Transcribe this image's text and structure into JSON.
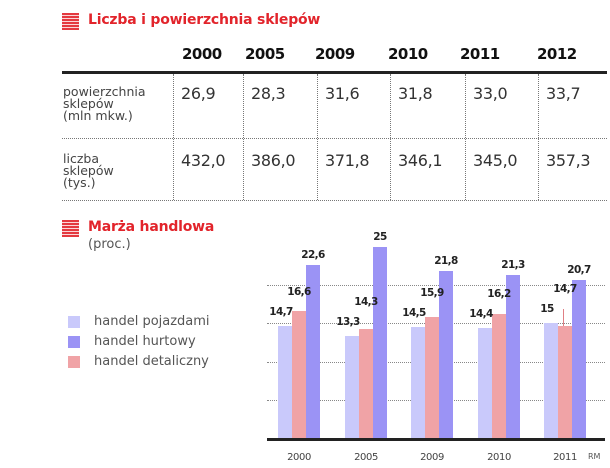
{
  "table_section": {
    "title": "Liczba i powierzchnia sklepów",
    "years": [
      "2000",
      "2005",
      "2009",
      "2010",
      "2011",
      "2012"
    ],
    "rows": [
      {
        "label_lines": [
          "powierzchnia",
          "sklepów",
          "(mln mkw.)"
        ],
        "values": [
          "26,9",
          "28,3",
          "31,6",
          "31,8",
          "33,0",
          "33,7"
        ]
      },
      {
        "label_lines": [
          "liczba",
          "sklepów",
          "(tys.)"
        ],
        "values": [
          "432,0",
          "386,0",
          "371,8",
          "346,1",
          "345,0",
          "357,3"
        ]
      }
    ]
  },
  "chart_section": {
    "title": "Marża handlowa",
    "subtitle": "(proc.)",
    "legend": [
      {
        "label": "handel pojazdami",
        "color": "#c9c9fb"
      },
      {
        "label": "handel hurtowy",
        "color": "#9b93f5"
      },
      {
        "label": "handel detaliczny",
        "color": "#f0a3a6"
      }
    ],
    "credit": "RM"
  },
  "chart_data": [
    {
      "type": "table",
      "title": "Liczba i powierzchnia sklepów",
      "columns": [
        "2000",
        "2005",
        "2009",
        "2010",
        "2011",
        "2012"
      ],
      "rows": [
        {
          "name": "powierzchnia sklepów (mln mkw.)",
          "values": [
            26.9,
            28.3,
            31.6,
            31.8,
            33.0,
            33.7
          ]
        },
        {
          "name": "liczba sklepów (tys.)",
          "values": [
            432.0,
            386.0,
            371.8,
            346.1,
            345.0,
            357.3
          ]
        }
      ]
    },
    {
      "type": "bar",
      "title": "Marża handlowa",
      "subtitle": "(proc.)",
      "xlabel": "",
      "ylabel": "proc.",
      "categories": [
        "2000",
        "2005",
        "2009",
        "2010",
        "2011"
      ],
      "series": [
        {
          "name": "handel pojazdami",
          "color": "#c9c9fb",
          "values": [
            14.7,
            13.3,
            14.5,
            14.4,
            15
          ],
          "labels": [
            "14,7",
            "13,3",
            "14,5",
            "14,4",
            "15"
          ]
        },
        {
          "name": "handel detaliczny",
          "color": "#f0a3a6",
          "values": [
            16.6,
            14.3,
            15.9,
            16.2,
            14.7
          ],
          "labels": [
            "16,6",
            "14,3",
            "15,9",
            "16,2",
            "14,7"
          ]
        },
        {
          "name": "handel hurtowy",
          "color": "#9b93f5",
          "values": [
            22.6,
            25,
            21.8,
            21.3,
            20.7
          ],
          "labels": [
            "22,6",
            "25",
            "21,8",
            "21,3",
            "20,7"
          ]
        }
      ],
      "ylim": [
        0,
        25
      ],
      "grid": true,
      "legend_position": "left",
      "annotation": "RM"
    }
  ]
}
